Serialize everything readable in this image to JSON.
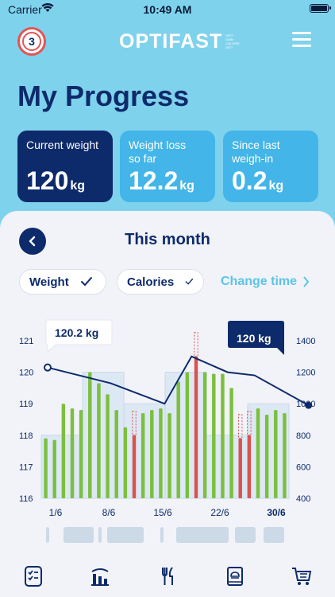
{
  "status": {
    "carrier": "Carrier",
    "time": "10:49 AM"
  },
  "header": {
    "badge_number": "3",
    "logo_text": "OPTIFAST",
    "logo_sub": "DIET · DIAB · CALORIE · DIET"
  },
  "page": {
    "title": "My Progress"
  },
  "cards": [
    {
      "label": "Current weight",
      "value": "120",
      "unit": "kg"
    },
    {
      "label": "Weight loss so far",
      "value": "12.2",
      "unit": "kg"
    },
    {
      "label": "Since last weigh-in",
      "value": "0.2",
      "unit": "kg"
    }
  ],
  "section": {
    "title": "This month"
  },
  "filters": {
    "weight_label": "Weight",
    "calories_label": "Calories",
    "change_time_label": "Change time"
  },
  "colors": {
    "navy": "#0d2a6b",
    "accent": "#43b5e8",
    "green": "#7cbf3f",
    "red": "#d9534f"
  },
  "chart_data": {
    "type": "bar",
    "y_left": {
      "ticks": [
        121,
        120,
        119,
        118,
        117,
        116
      ],
      "ylim": [
        116,
        121
      ]
    },
    "y_right": {
      "ticks": [
        1400,
        1200,
        1000,
        800,
        600,
        400
      ],
      "ylim": [
        400,
        1400
      ]
    },
    "x_ticks": [
      "1/6",
      "8/6",
      "15/6",
      "22/6",
      "30/6"
    ],
    "calories": [
      780,
      770,
      1000,
      970,
      960,
      1200,
      1130,
      1060,
      960,
      850,
      800,
      940,
      960,
      970,
      940,
      1140,
      1200,
      1300,
      1200,
      1190,
      1190,
      1100,
      780,
      800,
      970,
      930,
      960,
      940
    ],
    "calories_over": [
      false,
      false,
      false,
      false,
      false,
      false,
      false,
      false,
      false,
      false,
      true,
      false,
      false,
      false,
      false,
      false,
      false,
      true,
      false,
      false,
      false,
      false,
      true,
      true,
      false,
      false,
      false,
      false
    ],
    "weight_line": {
      "x_days": [
        1,
        8,
        14,
        17,
        21,
        24,
        30
      ],
      "weight": [
        120.2,
        119.9,
        119.4,
        120.0,
        119.7,
        119.9,
        120.0
      ]
    },
    "weight_line_right": [
      1230,
      1130,
      1000,
      1300,
      1200,
      1180,
      990
    ],
    "target_band": [
      800,
      1200,
      1000,
      1200,
      800,
      1000
    ],
    "callouts": {
      "start": "120.2 kg",
      "end": "120 kg"
    }
  },
  "icons": [
    "checklist-icon",
    "chart-icon",
    "cutlery-icon",
    "recipe-book-icon",
    "cart-icon"
  ]
}
